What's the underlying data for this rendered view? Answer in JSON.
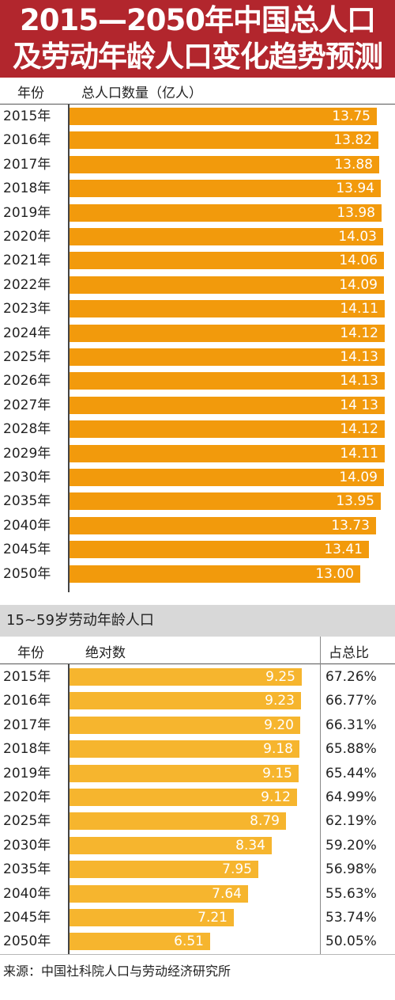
{
  "title": {
    "line1": "2015—2050年中国总人口",
    "line2": "及劳动年龄人口变化趋势预测"
  },
  "colors": {
    "title_bg": "#b2262d",
    "bar1": "#f29a0c",
    "bar2": "#f6b52e",
    "section_band": "#d8d8d8"
  },
  "chart_data": [
    {
      "type": "bar",
      "orientation": "horizontal",
      "header_category": "年份",
      "header_value": "总人口数量（亿人）",
      "categories": [
        "2015年",
        "2016年",
        "2017年",
        "2018年",
        "2019年",
        "2020年",
        "2021年",
        "2022年",
        "2023年",
        "2024年",
        "2025年",
        "2026年",
        "2027年",
        "2028年",
        "2029年",
        "2030年",
        "2035年",
        "2040年",
        "2045年",
        "2050年"
      ],
      "values": [
        13.75,
        13.82,
        13.88,
        13.94,
        13.98,
        14.03,
        14.06,
        14.09,
        14.11,
        14.12,
        14.13,
        14.13,
        14.13,
        14.12,
        14.11,
        14.09,
        13.95,
        13.73,
        13.41,
        13.0
      ],
      "value_labels": [
        "13.75",
        "13.82",
        "13.88",
        "13.94",
        "13.98",
        "14.03",
        "14.06",
        "14.09",
        "14.11",
        "14.12",
        "14.13",
        "14.13",
        "14 13",
        "14.12",
        "14.11",
        "14.09",
        "13.95",
        "13.73",
        "13.41",
        "13.00"
      ],
      "xlim": [
        0,
        14.36
      ]
    },
    {
      "type": "bar",
      "orientation": "horizontal",
      "section_title": "15~59岁劳动年龄人口",
      "header_category": "年份",
      "header_value": "绝对数",
      "header_share": "占总比",
      "categories": [
        "2015年",
        "2016年",
        "2017年",
        "2018年",
        "2019年",
        "2020年",
        "2025年",
        "2030年",
        "2035年",
        "2040年",
        "2045年",
        "2050年"
      ],
      "values": [
        9.25,
        9.23,
        9.2,
        9.18,
        9.15,
        9.12,
        8.79,
        8.34,
        7.95,
        7.64,
        7.21,
        6.51
      ],
      "value_labels": [
        "9.25",
        "9.23",
        "9.20",
        "9.18",
        "9.15",
        "9.12",
        "8.79",
        "8.34",
        "7.95",
        "7.64",
        "7.21",
        "6.51"
      ],
      "shares": [
        "67.26%",
        "66.77%",
        "66.31%",
        "65.88%",
        "65.44%",
        "64.99%",
        "62.19%",
        "59.20%",
        "56.98%",
        "55.63%",
        "53.74%",
        "50.05%"
      ],
      "xlim": [
        2.28,
        9.49
      ]
    }
  ],
  "source": "来源：中国社科院人口与劳动经济研究所"
}
